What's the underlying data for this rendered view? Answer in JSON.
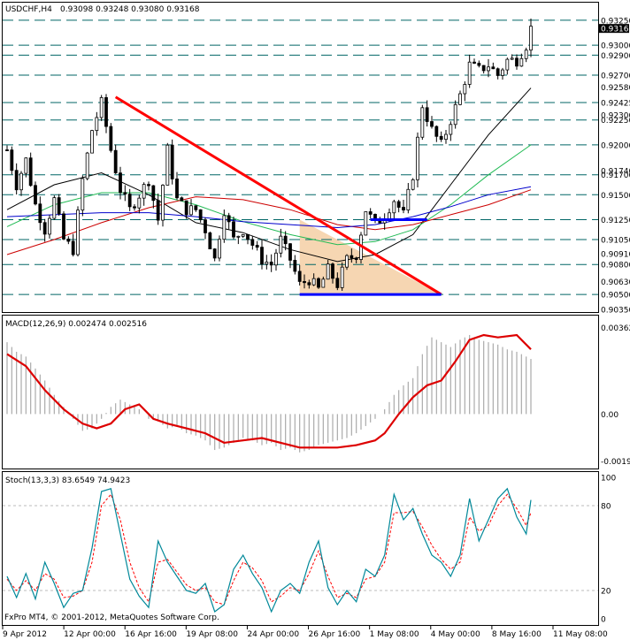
{
  "header": {
    "title": "USDCHF,H4",
    "ohlc": "0.93098 0.93248 0.93080 0.93168"
  },
  "footer": {
    "copyright": "FxPro MT4, © 2001-2012, MetaQuotes Software Corp."
  },
  "colors": {
    "candle": "#000000",
    "level_line": "#006666",
    "trend_line": "#ff0000",
    "support_line": "#0000ff",
    "triangle_fill": "#f5cfa5",
    "ma_black": "#000000",
    "ma_green": "#22bb55",
    "ma_red": "#cc0000",
    "ma_blue": "#0000cc",
    "macd_line": "#dd0000",
    "macd_hist": "#aaaaaa",
    "stoch_main": "#008899",
    "stoch_signal": "#ff0000"
  },
  "chart_data": [
    {
      "type": "candlestick",
      "name": "USDCHF,H4",
      "ylim": [
        0.9035,
        0.934
      ],
      "x_tick_labels": [
        "9 Apr 2012",
        "12 Apr 00:00",
        "16 Apr 16:00",
        "19 Apr 08:00",
        "24 Apr 00:00",
        "26 Apr 16:00",
        "1 May 08:00",
        "4 May 00:00",
        "8 May 16:00",
        "11 May 08:00"
      ],
      "price_labels": [
        "0.93250",
        "0.93168",
        "0.93000",
        "0.92900",
        "0.92700",
        "0.92580",
        "0.92425",
        "0.92300",
        "0.92250",
        "0.92000",
        "0.91740",
        "0.91700",
        "0.91500",
        "0.91250",
        "0.91050",
        "0.90910",
        "0.90800",
        "0.90630",
        "0.90500",
        "0.90350"
      ],
      "horizontal_levels": [
        0.9325,
        0.93,
        0.929,
        0.927,
        0.92425,
        0.9225,
        0.92,
        0.917,
        0.915,
        0.9125,
        0.9105,
        0.908,
        0.905
      ],
      "current_price": 0.93168,
      "close_path": [
        [
          0,
          0.9195
        ],
        [
          2,
          0.916
        ],
        [
          4,
          0.9185
        ],
        [
          6,
          0.914
        ],
        [
          8,
          0.9115
        ],
        [
          10,
          0.9145
        ],
        [
          12,
          0.9105
        ],
        [
          14,
          0.9095
        ],
        [
          16,
          0.9165
        ],
        [
          18,
          0.9215
        ],
        [
          20,
          0.9242
        ],
        [
          22,
          0.9195
        ],
        [
          24,
          0.9155
        ],
        [
          26,
          0.9135
        ],
        [
          28,
          0.915
        ],
        [
          30,
          0.9165
        ],
        [
          32,
          0.9125
        ],
        [
          34,
          0.9195
        ],
        [
          36,
          0.9145
        ],
        [
          38,
          0.9135
        ],
        [
          40,
          0.9135
        ],
        [
          42,
          0.9115
        ],
        [
          44,
          0.9085
        ],
        [
          46,
          0.9135
        ],
        [
          48,
          0.9105
        ],
        [
          50,
          0.9115
        ],
        [
          52,
          0.91
        ],
        [
          54,
          0.9085
        ],
        [
          56,
          0.908
        ],
        [
          58,
          0.9105
        ],
        [
          60,
          0.9085
        ],
        [
          62,
          0.906
        ],
        [
          64,
          0.9065
        ],
        [
          66,
          0.9055
        ],
        [
          68,
          0.9075
        ],
        [
          70,
          0.906
        ],
        [
          72,
          0.9085
        ],
        [
          74,
          0.909
        ],
        [
          76,
          0.9135
        ],
        [
          78,
          0.912
        ],
        [
          80,
          0.913
        ],
        [
          82,
          0.9145
        ],
        [
          84,
          0.913
        ],
        [
          86,
          0.917
        ],
        [
          88,
          0.924
        ],
        [
          90,
          0.9215
        ],
        [
          92,
          0.92
        ],
        [
          94,
          0.9225
        ],
        [
          96,
          0.925
        ],
        [
          98,
          0.928
        ],
        [
          100,
          0.9275
        ],
        [
          102,
          0.928
        ],
        [
          104,
          0.927
        ],
        [
          106,
          0.9285
        ],
        [
          108,
          0.9285
        ],
        [
          110,
          0.93
        ],
        [
          111,
          0.9317
        ]
      ],
      "ma_series": [
        {
          "color_key": "ma_black",
          "points": [
            [
              0,
              0.9135
            ],
            [
              10,
              0.916
            ],
            [
              20,
              0.9172
            ],
            [
              30,
              0.915
            ],
            [
              40,
              0.9122
            ],
            [
              50,
              0.9112
            ],
            [
              60,
              0.9095
            ],
            [
              70,
              0.9083
            ],
            [
              78,
              0.909
            ],
            [
              86,
              0.911
            ],
            [
              94,
              0.916
            ],
            [
              102,
              0.921
            ],
            [
              111,
              0.9257
            ]
          ]
        },
        {
          "color_key": "ma_green",
          "points": [
            [
              0,
              0.9118
            ],
            [
              10,
              0.914
            ],
            [
              20,
              0.9152
            ],
            [
              30,
              0.9152
            ],
            [
              40,
              0.914
            ],
            [
              50,
              0.9123
            ],
            [
              60,
              0.911
            ],
            [
              70,
              0.91
            ],
            [
              78,
              0.9103
            ],
            [
              86,
              0.9115
            ],
            [
              94,
              0.914
            ],
            [
              102,
              0.917
            ],
            [
              111,
              0.92
            ]
          ]
        },
        {
          "color_key": "ma_red",
          "points": [
            [
              0,
              0.909
            ],
            [
              10,
              0.9105
            ],
            [
              20,
              0.9122
            ],
            [
              30,
              0.9137
            ],
            [
              40,
              0.9148
            ],
            [
              50,
              0.9145
            ],
            [
              60,
              0.9135
            ],
            [
              70,
              0.912
            ],
            [
              78,
              0.9115
            ],
            [
              86,
              0.912
            ],
            [
              94,
              0.913
            ],
            [
              102,
              0.914
            ],
            [
              111,
              0.9155
            ]
          ]
        },
        {
          "color_key": "ma_blue",
          "points": [
            [
              0,
              0.9128
            ],
            [
              10,
              0.913
            ],
            [
              20,
              0.9132
            ],
            [
              30,
              0.9132
            ],
            [
              40,
              0.9128
            ],
            [
              50,
              0.9123
            ],
            [
              60,
              0.912
            ],
            [
              70,
              0.9117
            ],
            [
              78,
              0.912
            ],
            [
              86,
              0.9128
            ],
            [
              94,
              0.9138
            ],
            [
              102,
              0.915
            ],
            [
              111,
              0.9158
            ]
          ]
        }
      ],
      "annotations": {
        "trend_line": [
          [
            23,
            0.9248
          ],
          [
            92,
            0.905
          ]
        ],
        "triangle": [
          [
            62,
            0.9125
          ],
          [
            92,
            0.905
          ],
          [
            62,
            0.905
          ]
        ],
        "support_low": {
          "from": 62,
          "to": 92,
          "price": 0.905
        },
        "support_high": {
          "from": 77,
          "to": 89,
          "price": 0.9125
        }
      }
    },
    {
      "type": "bar+line",
      "name": "MACD(12,26,9) 0.002474 0.002516",
      "ylim": [
        -0.0022,
        0.004
      ],
      "tick_labels": [
        "0.003620",
        "0.00",
        "-0.001960"
      ],
      "signal_line": [
        [
          0,
          0.0025
        ],
        [
          4,
          0.002
        ],
        [
          8,
          0.001
        ],
        [
          12,
          0.0002
        ],
        [
          16,
          -0.0004
        ],
        [
          19,
          -0.0006
        ],
        [
          22,
          -0.0004
        ],
        [
          25,
          0.0002
        ],
        [
          28,
          0.0004
        ],
        [
          31,
          -0.0002
        ],
        [
          34,
          -0.0004
        ],
        [
          38,
          -0.0006
        ],
        [
          42,
          -0.0008
        ],
        [
          46,
          -0.0012
        ],
        [
          50,
          -0.0011
        ],
        [
          54,
          -0.001
        ],
        [
          58,
          -0.0012
        ],
        [
          62,
          -0.0014
        ],
        [
          66,
          -0.0014
        ],
        [
          70,
          -0.0014
        ],
        [
          74,
          -0.0013
        ],
        [
          78,
          -0.0011
        ],
        [
          80,
          -0.0008
        ],
        [
          83,
          0.0
        ],
        [
          86,
          0.0007
        ],
        [
          89,
          0.0012
        ],
        [
          92,
          0.0014
        ],
        [
          95,
          0.0022
        ],
        [
          98,
          0.0031
        ],
        [
          101,
          0.0033
        ],
        [
          104,
          0.0032
        ],
        [
          108,
          0.0033
        ],
        [
          111,
          0.0027
        ]
      ],
      "histogram": [
        [
          0,
          0.003
        ],
        [
          2,
          0.0026
        ],
        [
          4,
          0.0024
        ],
        [
          6,
          0.0019
        ],
        [
          8,
          0.0014
        ],
        [
          10,
          0.0008
        ],
        [
          12,
          0.0003
        ],
        [
          14,
          -0.0002
        ],
        [
          16,
          -0.0007
        ],
        [
          18,
          -0.0006
        ],
        [
          20,
          -0.0002
        ],
        [
          22,
          0.0003
        ],
        [
          24,
          0.0006
        ],
        [
          26,
          0.0004
        ],
        [
          28,
          0.0002
        ],
        [
          30,
          -0.0002
        ],
        [
          32,
          -0.0003
        ],
        [
          34,
          -0.0006
        ],
        [
          36,
          -0.0005
        ],
        [
          38,
          -0.0008
        ],
        [
          40,
          -0.0009
        ],
        [
          42,
          -0.0011
        ],
        [
          44,
          -0.0015
        ],
        [
          46,
          -0.0014
        ],
        [
          48,
          -0.0012
        ],
        [
          50,
          -0.001
        ],
        [
          52,
          -0.0011
        ],
        [
          54,
          -0.0013
        ],
        [
          56,
          -0.0012
        ],
        [
          58,
          -0.0015
        ],
        [
          60,
          -0.0014
        ],
        [
          62,
          -0.0016
        ],
        [
          64,
          -0.0015
        ],
        [
          66,
          -0.0013
        ],
        [
          68,
          -0.0012
        ],
        [
          70,
          -0.0011
        ],
        [
          72,
          -0.001
        ],
        [
          74,
          -0.0008
        ],
        [
          76,
          -0.0005
        ],
        [
          78,
          -0.0002
        ],
        [
          80,
          0.0002
        ],
        [
          82,
          0.0008
        ],
        [
          84,
          0.0012
        ],
        [
          86,
          0.0015
        ],
        [
          88,
          0.0025
        ],
        [
          90,
          0.0032
        ],
        [
          92,
          0.003
        ],
        [
          94,
          0.0028
        ],
        [
          96,
          0.0031
        ],
        [
          98,
          0.0033
        ],
        [
          100,
          0.0031
        ],
        [
          102,
          0.003
        ],
        [
          104,
          0.0029
        ],
        [
          106,
          0.0027
        ],
        [
          108,
          0.0026
        ],
        [
          110,
          0.0024
        ],
        [
          111,
          0.0023
        ]
      ]
    },
    {
      "type": "line",
      "name": "Stoch(13,3,3) 83.6549 74.9423",
      "ylim": [
        0,
        100
      ],
      "tick_labels": [
        "100",
        "80",
        "20",
        "0"
      ],
      "main": [
        [
          0,
          30
        ],
        [
          2,
          15
        ],
        [
          4,
          32
        ],
        [
          6,
          14
        ],
        [
          8,
          40
        ],
        [
          10,
          25
        ],
        [
          12,
          8
        ],
        [
          14,
          18
        ],
        [
          16,
          20
        ],
        [
          18,
          50
        ],
        [
          20,
          90
        ],
        [
          22,
          92
        ],
        [
          24,
          60
        ],
        [
          26,
          28
        ],
        [
          28,
          16
        ],
        [
          30,
          8
        ],
        [
          32,
          55
        ],
        [
          34,
          40
        ],
        [
          36,
          30
        ],
        [
          38,
          20
        ],
        [
          40,
          18
        ],
        [
          42,
          25
        ],
        [
          44,
          5
        ],
        [
          46,
          10
        ],
        [
          48,
          35
        ],
        [
          50,
          45
        ],
        [
          52,
          32
        ],
        [
          54,
          22
        ],
        [
          56,
          5
        ],
        [
          58,
          20
        ],
        [
          60,
          25
        ],
        [
          62,
          18
        ],
        [
          64,
          40
        ],
        [
          66,
          55
        ],
        [
          68,
          22
        ],
        [
          70,
          10
        ],
        [
          72,
          20
        ],
        [
          74,
          12
        ],
        [
          76,
          35
        ],
        [
          78,
          30
        ],
        [
          80,
          45
        ],
        [
          82,
          88
        ],
        [
          84,
          70
        ],
        [
          86,
          78
        ],
        [
          88,
          60
        ],
        [
          90,
          45
        ],
        [
          92,
          40
        ],
        [
          94,
          30
        ],
        [
          96,
          45
        ],
        [
          98,
          85
        ],
        [
          100,
          55
        ],
        [
          102,
          70
        ],
        [
          104,
          85
        ],
        [
          106,
          92
        ],
        [
          108,
          72
        ],
        [
          110,
          60
        ],
        [
          111,
          84
        ]
      ],
      "signal": [
        [
          0,
          28
        ],
        [
          2,
          20
        ],
        [
          4,
          27
        ],
        [
          6,
          20
        ],
        [
          8,
          32
        ],
        [
          10,
          28
        ],
        [
          12,
          15
        ],
        [
          14,
          16
        ],
        [
          16,
          20
        ],
        [
          18,
          40
        ],
        [
          20,
          80
        ],
        [
          22,
          88
        ],
        [
          24,
          70
        ],
        [
          26,
          40
        ],
        [
          28,
          22
        ],
        [
          30,
          12
        ],
        [
          32,
          40
        ],
        [
          34,
          42
        ],
        [
          36,
          33
        ],
        [
          38,
          24
        ],
        [
          40,
          20
        ],
        [
          42,
          22
        ],
        [
          44,
          12
        ],
        [
          46,
          10
        ],
        [
          48,
          27
        ],
        [
          50,
          40
        ],
        [
          52,
          36
        ],
        [
          54,
          27
        ],
        [
          56,
          12
        ],
        [
          58,
          16
        ],
        [
          60,
          22
        ],
        [
          62,
          20
        ],
        [
          64,
          32
        ],
        [
          66,
          48
        ],
        [
          68,
          30
        ],
        [
          70,
          15
        ],
        [
          72,
          18
        ],
        [
          74,
          15
        ],
        [
          76,
          28
        ],
        [
          78,
          30
        ],
        [
          80,
          40
        ],
        [
          82,
          75
        ],
        [
          84,
          75
        ],
        [
          86,
          76
        ],
        [
          88,
          65
        ],
        [
          90,
          52
        ],
        [
          92,
          42
        ],
        [
          94,
          35
        ],
        [
          96,
          40
        ],
        [
          98,
          72
        ],
        [
          100,
          62
        ],
        [
          102,
          66
        ],
        [
          104,
          80
        ],
        [
          106,
          88
        ],
        [
          108,
          78
        ],
        [
          110,
          66
        ],
        [
          111,
          75
        ]
      ]
    }
  ]
}
